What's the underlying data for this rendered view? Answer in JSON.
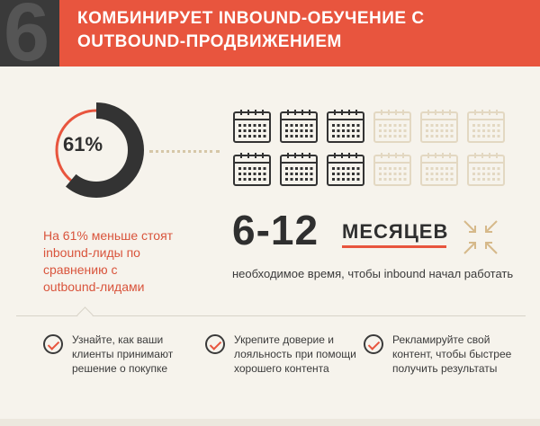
{
  "header": {
    "section_number": "6",
    "title_line1": "Комбинирует inbound-обучение с",
    "title_line2": "outbound-продвижением",
    "accent_color": "#e8553e",
    "dark_color": "#3a3a3a"
  },
  "stat": {
    "percent_label": "61%",
    "percent_value": 61,
    "text_lines": [
      "На 61% меньше стоят",
      "inbound-лиды по",
      "сравнению с",
      "outbound-лидами"
    ]
  },
  "calendars": {
    "total": 12,
    "highlighted": 6,
    "icon": "calendar-icon"
  },
  "timeline": {
    "range": "6-12",
    "unit": "МЕСЯЦЕВ",
    "subtitle": "необходимое время, чтобы inbound начал работать",
    "icon": "compress-arrows-icon"
  },
  "tips": [
    {
      "icon": "check-circle-icon",
      "text": "Узнайте, как ваши клиенты принимают решение о покупке"
    },
    {
      "icon": "check-circle-icon",
      "text": "Укрепите доверие и лояльность при помощи хорошего контента"
    },
    {
      "icon": "check-circle-icon",
      "text": "Рекламируйте свой контент, чтобы быстрее получить результаты"
    }
  ]
}
